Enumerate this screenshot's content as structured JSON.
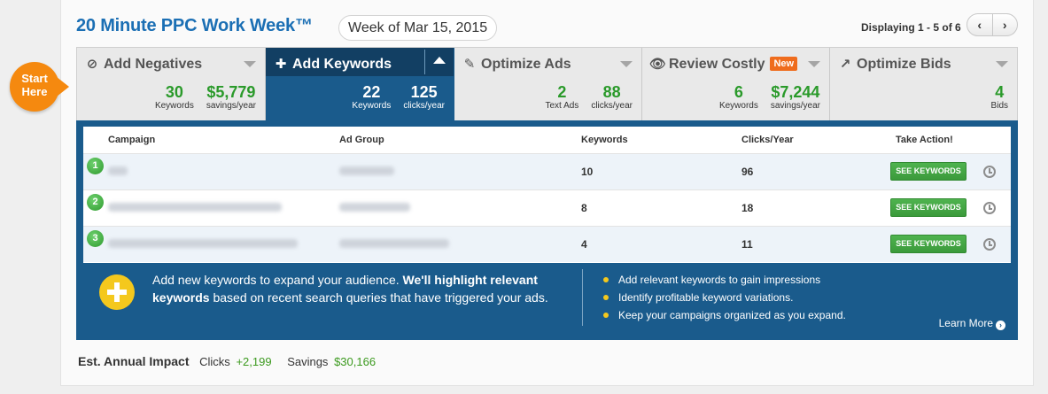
{
  "header": {
    "title": "20 Minute PPC Work Week",
    "trademark": "™",
    "week": "Week of Mar 15, 2015",
    "displaying": "Displaying 1 - 5 of 6",
    "prev": "‹",
    "next": "›"
  },
  "start_badge": {
    "line1": "Start",
    "line2": "Here"
  },
  "tabs": [
    {
      "title": "Add Negatives",
      "icon": "ban-icon",
      "glyph": "⊘",
      "stats": [
        {
          "num": "30",
          "label": "Keywords"
        },
        {
          "num": "$5,779",
          "label": "savings/year"
        }
      ]
    },
    {
      "title": "Add Keywords",
      "icon": "plus-icon",
      "glyph": "✚",
      "active": true,
      "stats": [
        {
          "num": "22",
          "label": "Keywords"
        },
        {
          "num": "125",
          "label": "clicks/year"
        }
      ]
    },
    {
      "title": "Optimize Ads",
      "icon": "edit-icon",
      "glyph": "✎",
      "stats": [
        {
          "num": "2",
          "label": "Text Ads"
        },
        {
          "num": "88",
          "label": "clicks/year"
        }
      ]
    },
    {
      "title": "Review Costly",
      "icon": "eye-icon",
      "glyph": "👁",
      "badge": "New",
      "stats": [
        {
          "num": "6",
          "label": "Keywords"
        },
        {
          "num": "$7,244",
          "label": "savings/year"
        }
      ]
    },
    {
      "title": "Optimize Bids",
      "icon": "trend-up-icon",
      "glyph": "↗",
      "stats": [
        {
          "num": "4",
          "label": "Bids"
        }
      ]
    }
  ],
  "table": {
    "columns": [
      "Campaign",
      "Ad Group",
      "Keywords",
      "Clicks/Year",
      "Take Action!"
    ],
    "rows": [
      {
        "index": "1",
        "keywords": "10",
        "clicks": "96",
        "action": "SEE KEYWORDS"
      },
      {
        "index": "2",
        "keywords": "8",
        "clicks": "18",
        "action": "SEE KEYWORDS"
      },
      {
        "index": "3",
        "keywords": "4",
        "clicks": "11",
        "action": "SEE KEYWORDS"
      }
    ]
  },
  "info": {
    "text_a": "Add new keywords to expand your audience. ",
    "text_b": "We'll highlight relevant keywords",
    "text_c": " based on recent search queries that have triggered your ads.",
    "bullets": [
      "Add relevant keywords to gain impressions",
      "Identify profitable keyword variations.",
      "Keep your campaigns organized as you expand."
    ],
    "learn_more": "Learn More"
  },
  "impact": {
    "label": "Est. Annual Impact",
    "clicks_label": "Clicks",
    "clicks_value": "+2,199",
    "savings_label": "Savings",
    "savings_value": "$30,166"
  },
  "colors": {
    "brand_blue": "#1b6fb4",
    "panel_blue": "#1a5b8c",
    "green": "#2a9a2a",
    "orange": "#f5890f"
  }
}
